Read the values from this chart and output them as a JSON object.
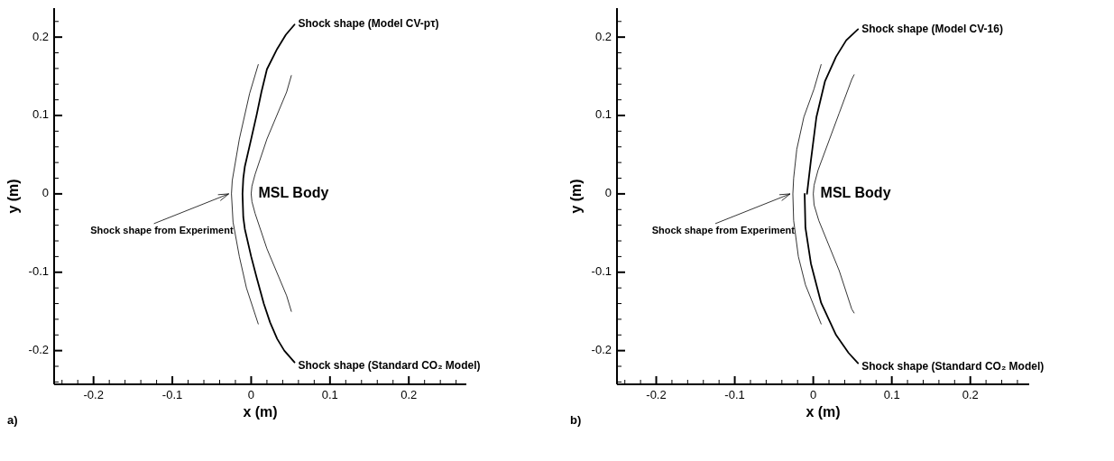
{
  "chart_data": [
    {
      "type": "line",
      "title": "a)",
      "xlabel": "x (m)",
      "ylabel": "y (m)",
      "xlim": [
        -0.25,
        0.273
      ],
      "ylim": [
        -0.243,
        0.237
      ],
      "xticks": [
        {
          "value": -0.24,
          "label": null
        },
        {
          "value": -0.22,
          "label": null
        },
        -0.2,
        {
          "value": -0.18,
          "label": null
        },
        {
          "value": -0.16,
          "label": null
        },
        {
          "value": -0.14,
          "label": null
        },
        {
          "value": -0.12,
          "label": null
        },
        -0.1,
        {
          "value": -0.08,
          "label": null
        },
        {
          "value": -0.06,
          "label": null
        },
        {
          "value": -0.04,
          "label": null
        },
        {
          "value": -0.02,
          "label": null
        },
        0,
        {
          "value": 0.02,
          "label": null
        },
        {
          "value": 0.04,
          "label": null
        },
        {
          "value": 0.06,
          "label": null
        },
        {
          "value": 0.08,
          "label": null
        },
        0.1,
        {
          "value": 0.12,
          "label": null
        },
        {
          "value": 0.14,
          "label": null
        },
        {
          "value": 0.16,
          "label": null
        },
        {
          "value": 0.18,
          "label": null
        },
        0.2,
        {
          "value": 0.22,
          "label": null
        },
        {
          "value": 0.24,
          "label": null
        },
        {
          "value": 0.26,
          "label": null
        }
      ],
      "yticks": [
        {
          "value": -0.24,
          "label": null
        },
        {
          "value": -0.22,
          "label": null
        },
        -0.2,
        {
          "value": -0.18,
          "label": null
        },
        {
          "value": -0.16,
          "label": null
        },
        {
          "value": -0.14,
          "label": null
        },
        {
          "value": -0.12,
          "label": null
        },
        -0.1,
        {
          "value": -0.08,
          "label": null
        },
        {
          "value": -0.06,
          "label": null
        },
        {
          "value": -0.04,
          "label": null
        },
        {
          "value": -0.02,
          "label": null
        },
        0,
        {
          "value": 0.02,
          "label": null
        },
        {
          "value": 0.04,
          "label": null
        },
        {
          "value": 0.06,
          "label": null
        },
        {
          "value": 0.08,
          "label": null
        },
        0.1,
        {
          "value": 0.12,
          "label": null
        },
        {
          "value": 0.14,
          "label": null
        },
        {
          "value": 0.16,
          "label": null
        },
        {
          "value": 0.18,
          "label": null
        },
        0.2,
        {
          "value": 0.22,
          "label": null
        }
      ],
      "grid": false,
      "marker": "none",
      "line_style": "solid",
      "series": [
        {
          "color": "#000000",
          "x": [
            0.009,
            -0.002,
            -0.015,
            -0.024,
            -0.025,
            -0.023,
            -0.015,
            -0.006,
            0.009
          ],
          "values": [
            0.165,
            0.128,
            0.07,
            0.017,
            0,
            -0.036,
            -0.08,
            -0.12,
            -0.166
          ]
        },
        {
          "color": "#000000",
          "x": [
            0.051,
            0.045,
            0.02,
            0.005,
            0.001,
            0,
            0.001,
            0.005,
            0.02,
            0.045,
            0.051
          ],
          "values": [
            0.151,
            0.13,
            0.07,
            0.025,
            0.01,
            0,
            -0.01,
            -0.025,
            -0.07,
            -0.13,
            -0.15
          ]
        },
        {
          "color": "#000000",
          "x": [
            0.055,
            0.044,
            0.033,
            0.02,
            0.013,
            0.007,
            0,
            -0.008,
            -0.01,
            -0.011,
            -0.01,
            -0.008,
            0,
            0.007,
            0.016,
            0.024,
            0.033,
            0.042,
            0.055
          ],
          "values": [
            0.216,
            0.203,
            0.185,
            0.159,
            0.13,
            0.101,
            0.07,
            0.035,
            0.02,
            0,
            -0.03,
            -0.045,
            -0.08,
            -0.107,
            -0.14,
            -0.164,
            -0.185,
            -0.2,
            -0.215
          ]
        }
      ],
      "annotations": [
        {
          "text": "Shock shape from Experiment",
          "x": -0.025,
          "y": 0
        },
        "MSL Body",
        "Shock shape (Model CV-pτ)",
        "Shock shape (Standard CO₂ Model)"
      ]
    },
    {
      "type": "line",
      "title": "b)",
      "xlabel": "x (m)",
      "ylabel": "y (m)",
      "xlim": [
        -0.25,
        0.275
      ],
      "ylim": [
        -0.243,
        0.237
      ],
      "xticks": [
        {
          "value": -0.24,
          "label": null
        },
        {
          "value": -0.22,
          "label": null
        },
        -0.2,
        {
          "value": -0.18,
          "label": null
        },
        {
          "value": -0.16,
          "label": null
        },
        {
          "value": -0.14,
          "label": null
        },
        {
          "value": -0.12,
          "label": null
        },
        -0.1,
        {
          "value": -0.08,
          "label": null
        },
        {
          "value": -0.06,
          "label": null
        },
        {
          "value": -0.04,
          "label": null
        },
        {
          "value": -0.02,
          "label": null
        },
        0,
        {
          "value": 0.02,
          "label": null
        },
        {
          "value": 0.04,
          "label": null
        },
        {
          "value": 0.06,
          "label": null
        },
        {
          "value": 0.08,
          "label": null
        },
        0.1,
        {
          "value": 0.12,
          "label": null
        },
        {
          "value": 0.14,
          "label": null
        },
        {
          "value": 0.16,
          "label": null
        },
        {
          "value": 0.18,
          "label": null
        },
        0.2,
        {
          "value": 0.22,
          "label": null
        },
        {
          "value": 0.24,
          "label": null
        },
        {
          "value": 0.26,
          "label": null
        }
      ],
      "yticks": [
        {
          "value": -0.24,
          "label": null
        },
        {
          "value": -0.22,
          "label": null
        },
        -0.2,
        {
          "value": -0.18,
          "label": null
        },
        {
          "value": -0.16,
          "label": null
        },
        {
          "value": -0.14,
          "label": null
        },
        {
          "value": -0.12,
          "label": null
        },
        -0.1,
        {
          "value": -0.08,
          "label": null
        },
        {
          "value": -0.06,
          "label": null
        },
        {
          "value": -0.04,
          "label": null
        },
        {
          "value": -0.02,
          "label": null
        },
        0,
        {
          "value": 0.02,
          "label": null
        },
        {
          "value": 0.04,
          "label": null
        },
        {
          "value": 0.06,
          "label": null
        },
        {
          "value": 0.08,
          "label": null
        },
        0.1,
        {
          "value": 0.12,
          "label": null
        },
        {
          "value": 0.14,
          "label": null
        },
        {
          "value": 0.16,
          "label": null
        },
        {
          "value": 0.18,
          "label": null
        },
        0.2,
        {
          "value": 0.22,
          "label": null
        }
      ],
      "grid": false,
      "marker": "none",
      "line_style": "solid",
      "series": [
        {
          "color": "#000000",
          "x": [
            0.01,
            0.001,
            -0.012,
            -0.021,
            -0.025,
            -0.026,
            -0.025,
            -0.019,
            -0.01,
            0.01
          ],
          "values": [
            0.165,
            0.134,
            0.098,
            0.057,
            0.02,
            0,
            -0.034,
            -0.08,
            -0.116,
            -0.166
          ]
        },
        {
          "color": "#000000",
          "x": [
            0.052,
            0.049,
            0.033,
            0.006,
            0.001,
            0,
            0.001,
            0.007,
            0.033,
            0.049,
            0.052
          ],
          "values": [
            0.152,
            0.146,
            0.103,
            0.03,
            0.011,
            0,
            -0.014,
            -0.034,
            -0.098,
            -0.147,
            -0.152
          ]
        },
        {
          "name": "Shock shape (Model CV-16)",
          "color": "#000000",
          "x": [
            -0.008,
            -0.003,
            0.004,
            0.015,
            0.029,
            0.042,
            0.057
          ],
          "values": [
            0,
            0.043,
            0.098,
            0.144,
            0.175,
            0.196,
            0.21
          ]
        },
        {
          "name": "Shock shape (Standard CO₂ Model)",
          "color": "#000000",
          "x": [
            -0.011,
            -0.01,
            -0.003,
            0.01,
            0.029,
            0.045,
            0.057
          ],
          "values": [
            0,
            -0.043,
            -0.089,
            -0.139,
            -0.18,
            -0.203,
            -0.216
          ]
        }
      ],
      "annotations": [
        {
          "text": "Shock shape from Experiment",
          "x": -0.026,
          "y": 0
        },
        "MSL Body"
      ]
    }
  ]
}
